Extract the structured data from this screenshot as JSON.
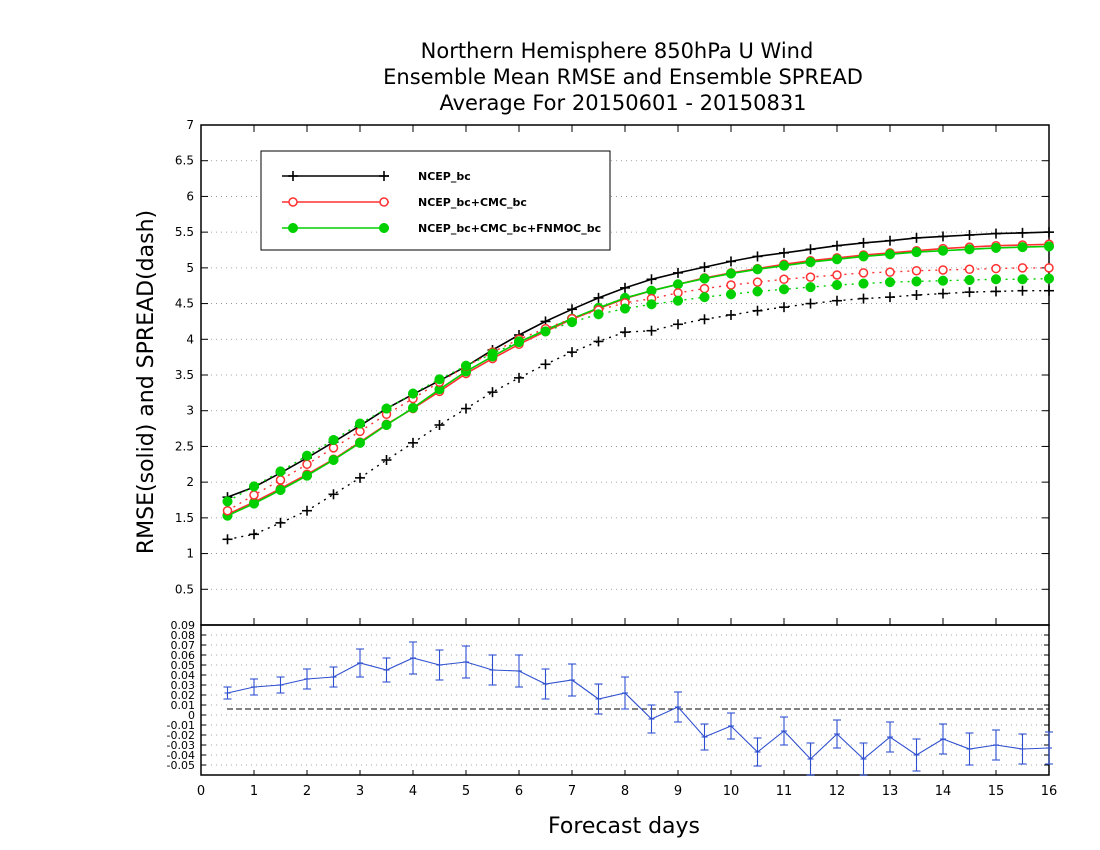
{
  "chart_data": [
    {
      "type": "line",
      "title": [
        "Northern Hemisphere 850hPa U Wind",
        "Ensemble Mean RMSE and Ensemble SPREAD",
        "Average For 20150601 - 20150831"
      ],
      "xlabel": "Forecast days",
      "ylabel": "RMSE(solid) and SPREAD(dash)",
      "xlim": [
        0,
        16
      ],
      "ylim": [
        0,
        7
      ],
      "xticks": [
        "0",
        "1",
        "2",
        "3",
        "4",
        "5",
        "6",
        "7",
        "8",
        "9",
        "10",
        "11",
        "12",
        "13",
        "14",
        "15",
        "16"
      ],
      "yticks": [
        "0.5",
        "1",
        "1.5",
        "2",
        "2.5",
        "3",
        "3.5",
        "4",
        "4.5",
        "5",
        "5.5",
        "6",
        "6.5",
        "7"
      ],
      "grid": true,
      "legend_position": "top-left",
      "x": [
        0.5,
        1,
        1.5,
        2,
        2.5,
        3,
        3.5,
        4,
        4.5,
        5,
        5.5,
        6,
        6.5,
        7,
        7.5,
        8,
        8.5,
        9,
        9.5,
        10,
        10.5,
        11,
        11.5,
        12,
        12.5,
        13,
        13.5,
        14,
        14.5,
        15,
        15.5,
        16
      ],
      "series": [
        {
          "name": "NCEP_bc",
          "color": "#000000",
          "marker": "plus",
          "style": "solid",
          "values": [
            1.79,
            1.93,
            2.13,
            2.34,
            2.56,
            2.79,
            3.03,
            3.23,
            3.42,
            3.62,
            3.85,
            4.06,
            4.25,
            4.42,
            4.58,
            4.72,
            4.84,
            4.93,
            5.01,
            5.09,
            5.16,
            5.21,
            5.26,
            5.31,
            5.35,
            5.38,
            5.42,
            5.44,
            5.46,
            5.48,
            5.49,
            5.5
          ]
        },
        {
          "name": "NCEP_bc+CMC_bc",
          "color": "#ff3030",
          "marker": "circle",
          "style": "solid",
          "values": [
            1.55,
            1.72,
            1.91,
            2.11,
            2.32,
            2.56,
            2.81,
            3.03,
            3.27,
            3.52,
            3.73,
            3.93,
            4.11,
            4.28,
            4.43,
            4.57,
            4.68,
            4.77,
            4.86,
            4.93,
            4.99,
            5.05,
            5.1,
            5.14,
            5.18,
            5.21,
            5.24,
            5.27,
            5.29,
            5.31,
            5.32,
            5.33
          ]
        },
        {
          "name": "NCEP_bc+CMC_bc+FNMOC_bc",
          "color": "#00d000",
          "marker": "dot",
          "style": "solid",
          "values": [
            1.53,
            1.7,
            1.89,
            2.09,
            2.31,
            2.55,
            2.8,
            3.04,
            3.3,
            3.55,
            3.76,
            3.96,
            4.13,
            4.29,
            4.44,
            4.58,
            4.68,
            4.77,
            4.85,
            4.92,
            4.98,
            5.03,
            5.08,
            5.12,
            5.16,
            5.19,
            5.22,
            5.24,
            5.26,
            5.28,
            5.29,
            5.3
          ]
        },
        {
          "name": "NCEP_bc",
          "color": "#000000",
          "marker": "plus",
          "style": "dash",
          "values": [
            1.2,
            1.27,
            1.43,
            1.6,
            1.83,
            2.06,
            2.31,
            2.55,
            2.8,
            3.03,
            3.26,
            3.46,
            3.65,
            3.82,
            3.97,
            4.1,
            4.12,
            4.21,
            4.28,
            4.34,
            4.4,
            4.45,
            4.5,
            4.54,
            4.57,
            4.59,
            4.62,
            4.64,
            4.66,
            4.67,
            4.68,
            4.68
          ]
        },
        {
          "name": "NCEP_bc+CMC_bc",
          "color": "#ff3030",
          "marker": "circle",
          "style": "dash",
          "values": [
            1.6,
            1.82,
            2.03,
            2.25,
            2.48,
            2.71,
            2.95,
            3.17,
            3.4,
            3.62,
            3.82,
            4.0,
            4.15,
            4.29,
            4.41,
            4.51,
            4.57,
            4.65,
            4.71,
            4.76,
            4.8,
            4.84,
            4.87,
            4.9,
            4.93,
            4.94,
            4.96,
            4.97,
            4.98,
            4.99,
            5.0,
            5.0
          ]
        },
        {
          "name": "NCEP_bc+CMC_bc+FNMOC_bc",
          "color": "#00d000",
          "marker": "dot",
          "style": "dash",
          "values": [
            1.73,
            1.94,
            2.15,
            2.37,
            2.59,
            2.82,
            3.03,
            3.24,
            3.44,
            3.63,
            3.8,
            3.97,
            4.11,
            4.24,
            4.35,
            4.43,
            4.49,
            4.54,
            4.59,
            4.63,
            4.67,
            4.7,
            4.73,
            4.76,
            4.78,
            4.8,
            4.81,
            4.82,
            4.83,
            4.84,
            4.84,
            4.85
          ]
        }
      ]
    },
    {
      "type": "line",
      "xlabel": "Forecast days",
      "xlim": [
        0,
        16
      ],
      "ylim": [
        -0.06,
        0.09
      ],
      "yticks": [
        "0.09",
        "0.08",
        "0.07",
        "0.06",
        "0.05",
        "0.04",
        "0.03",
        "0.02",
        "0.01",
        "0",
        "-0.01",
        "-0.02",
        "-0.03",
        "-0.04",
        "-0.05"
      ],
      "grid": true,
      "x": [
        0.5,
        1,
        1.5,
        2,
        2.5,
        3,
        3.5,
        4,
        4.5,
        5,
        5.5,
        6,
        6.5,
        7,
        7.5,
        8,
        8.5,
        9,
        9.5,
        10,
        10.5,
        11,
        11.5,
        12,
        12.5,
        13,
        13.5,
        14,
        14.5,
        15,
        15.5,
        16
      ],
      "series": [
        {
          "color": "#3050d0",
          "marker": "tick",
          "style": "solid",
          "values": [
            0.022,
            0.028,
            0.03,
            0.036,
            0.038,
            0.052,
            0.045,
            0.057,
            0.05,
            0.053,
            0.045,
            0.044,
            0.031,
            0.035,
            0.016,
            0.022,
            -0.004,
            0.008,
            -0.022,
            -0.011,
            -0.037,
            -0.016,
            -0.044,
            -0.019,
            -0.044,
            -0.022,
            -0.04,
            -0.024,
            -0.034,
            -0.03,
            -0.034,
            -0.033
          ],
          "errors": [
            0.006,
            0.008,
            0.008,
            0.01,
            0.01,
            0.014,
            0.012,
            0.016,
            0.015,
            0.016,
            0.015,
            0.016,
            0.015,
            0.016,
            0.015,
            0.016,
            0.014,
            0.015,
            0.013,
            0.013,
            0.014,
            0.014,
            0.016,
            0.014,
            0.016,
            0.015,
            0.016,
            0.015,
            0.016,
            0.015,
            0.015,
            0.016
          ]
        }
      ]
    }
  ]
}
